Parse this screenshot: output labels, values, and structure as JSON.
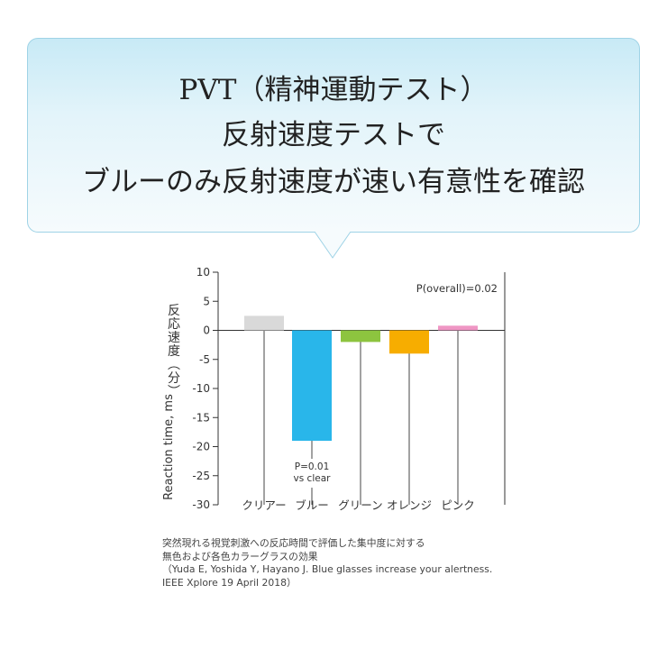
{
  "headline": {
    "line1": "PVT（精神運動テスト）",
    "line2": "反射速度テストで",
    "line3": "ブルーのみ反射速度が速い有意性を確認"
  },
  "chart_data": {
    "type": "bar",
    "categories": [
      "クリアー",
      "ブルー",
      "グリーン",
      "オレンジ",
      "ピンク"
    ],
    "values": [
      2.5,
      -19,
      -2,
      -4,
      0.8
    ],
    "colors": [
      "#d9d9d9",
      "#29b6ea",
      "#8dc43f",
      "#f7ad00",
      "#ef96c4"
    ],
    "ylabel_ja": "反応速度（分）",
    "ylabel_en": "Reaction time, ms",
    "ylim": [
      -30,
      10
    ],
    "yticks": [
      10,
      5,
      0,
      -5,
      -10,
      -15,
      -20,
      -25,
      -30
    ],
    "annotation_overall": "P(overall)=0.02",
    "annotation_blue": [
      "P=0.01",
      "vs clear"
    ]
  },
  "caption": {
    "line1": "突然現れる視覚刺激への反応時間で評価した集中度に対する",
    "line2": "無色および各色カラーグラスの効果",
    "line3": "（Yuda E, Yoshida Y, Hayano J. Blue glasses increase your alertness.",
    "line4": " IEEE Xplore 19 April 2018）"
  }
}
